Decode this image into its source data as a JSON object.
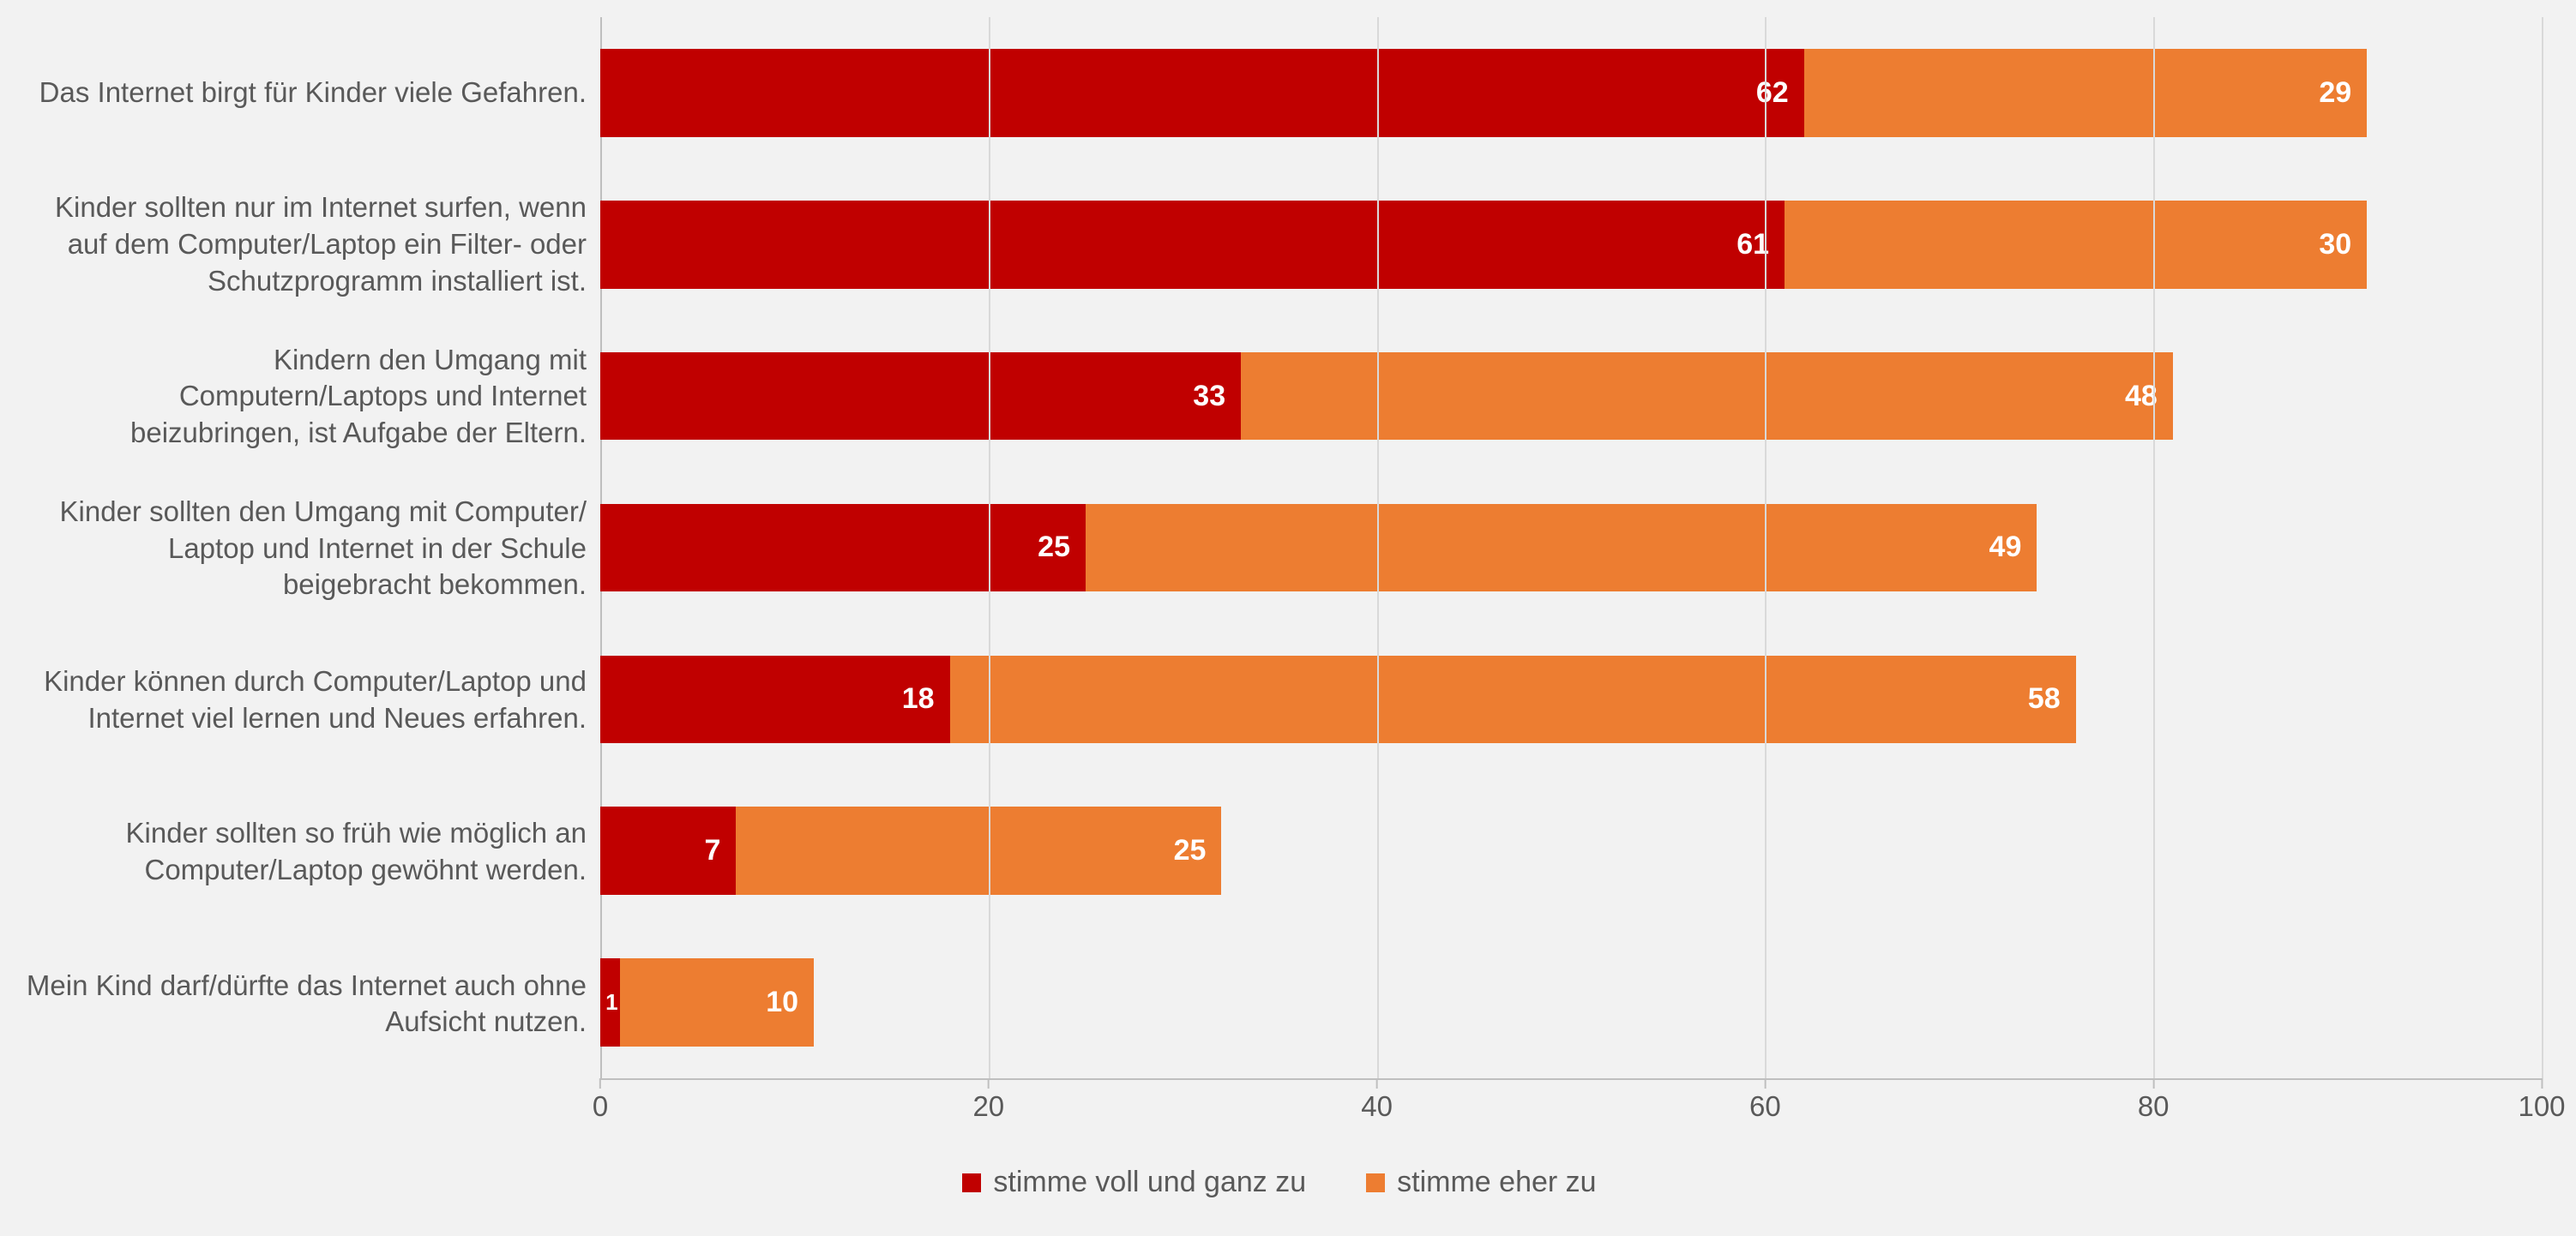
{
  "chart": {
    "type": "stacked-horizontal-bar",
    "background_color": "#f2f2f2",
    "text_color": "#595959",
    "grid_color": "#d9d9d9",
    "axis_color": "#bfbfbf",
    "label_fontsize_pt": 25,
    "value_fontsize_pt": 26,
    "value_fontweight": "bold",
    "value_color": "#ffffff",
    "bar_height_ratio": 0.58,
    "x_axis": {
      "min": 0,
      "max": 100,
      "tick_step": 20,
      "ticks": [
        "0",
        "20",
        "40",
        "60",
        "80",
        "100"
      ]
    },
    "series": [
      {
        "key": "s1",
        "label": "stimme voll und ganz zu",
        "color": "#c00000"
      },
      {
        "key": "s2",
        "label": "stimme eher zu",
        "color": "#ed7d31"
      }
    ],
    "categories": [
      {
        "label": "Das Internet birgt für Kinder viele Gefahren.",
        "s1": 62,
        "s2": 29
      },
      {
        "label": "Kinder sollten nur im Internet surfen, wenn auf dem Computer/Laptop ein Filter- oder Schutzprogramm installiert ist.",
        "s1": 61,
        "s2": 30
      },
      {
        "label": "Kindern den Umgang mit Computern/Laptops und Internet beizubringen, ist Aufgabe der Eltern.",
        "s1": 33,
        "s2": 48
      },
      {
        "label": "Kinder sollten den Umgang mit Computer/ Laptop und Internet in der Schule beigebracht bekommen.",
        "s1": 25,
        "s2": 49
      },
      {
        "label": "Kinder können durch Computer/Laptop und Internet viel lernen und Neues erfahren.",
        "s1": 18,
        "s2": 58
      },
      {
        "label": "Kinder sollten so früh wie möglich an Computer/Laptop gewöhnt werden.",
        "s1": 7,
        "s2": 25
      },
      {
        "label": "Mein Kind darf/dürfte das Internet auch ohne Aufsicht nutzen.",
        "s1": 1,
        "s2": 10
      }
    ]
  }
}
